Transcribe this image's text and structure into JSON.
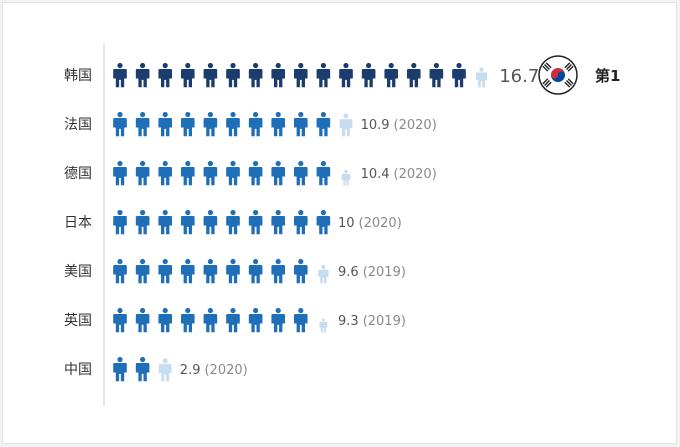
{
  "chart_data": {
    "type": "bar",
    "categories": [
      "韩国",
      "法国",
      "德国",
      "日本",
      "美国",
      "英国",
      "中国"
    ],
    "values": [
      16.7,
      10.9,
      10.4,
      10,
      9.6,
      9.3,
      2.9
    ],
    "value_labels": [
      "16.7",
      "10.9",
      "10.4",
      "10",
      "9.6",
      "9.3",
      "2.9"
    ],
    "years": [
      "",
      "(2020)",
      "(2020)",
      "(2020)",
      "(2019)",
      "(2019)",
      "(2020)"
    ],
    "highlight": {
      "category": "韩国",
      "rank_label": "第1",
      "flag": "south-korea-flag-icon"
    },
    "icon": "person-icon",
    "colors": {
      "highlight": "#1b3d6e",
      "normal": "#1f6fb8",
      "partial": "#c6dcef",
      "axis": "#cccccc"
    }
  }
}
